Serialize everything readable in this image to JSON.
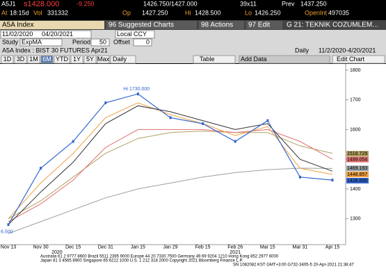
{
  "header": {
    "symbol": "A5J1",
    "last": "s1428.000",
    "change": "-9.250",
    "bidask": "1426.750/1427.000",
    "size": "39x11",
    "prev_label": "Prev",
    "prev": "1437.250",
    "at": "At",
    "time": "18:15d",
    "vol_label": "Vol",
    "vol": "331332",
    "op_label": "Op",
    "op": "1427.250",
    "hi_label": "Hi",
    "hi": "1428.500",
    "lo_label": "Lo",
    "lo": "1426.250",
    "oi_label": "OpenInt",
    "oi": "497035"
  },
  "toolbar": {
    "ticker": "A5A Index",
    "buttons": [
      "96 Suggested Charts",
      "98 Actions",
      "97 Edit",
      "G 21: TEKNIK COZUMLEM..."
    ]
  },
  "range": {
    "start": "11/02/2020",
    "end": "04/20/2021",
    "ccy": "Local CCY"
  },
  "study": {
    "label": "Study",
    "name": "ExpMA",
    "period_label": "Period",
    "period": "50",
    "offset_label": "Offset",
    "offset": "0"
  },
  "title": {
    "text": "A5A Index : BIST 30 FUTURES  Apr21",
    "freq": "Daily",
    "span": "11/2/2020-4/20/2021"
  },
  "controls": {
    "periods": [
      "1D",
      "3D",
      "1M",
      "6M",
      "YTD",
      "1Y",
      "5Y",
      "Max"
    ],
    "daily": "Daily",
    "table": "Table",
    "add_data": "Add Data",
    "edit_chart": "Edit Chart"
  },
  "chart": {
    "type": "line",
    "categories": [
      "Nov 13",
      "Nov 30",
      "Dec 15",
      "Dec 31",
      "Jan 15",
      "Jan 29",
      "Feb 15",
      "Feb 26",
      "Mar 15",
      "Mar 31",
      "Apr 15"
    ],
    "year_labels": [
      "2020",
      "2021"
    ],
    "ylim": [
      1215,
      1815
    ],
    "yticks": [
      1300,
      1400,
      1500,
      1600,
      1700,
      1800
    ],
    "annotation": "Hi 1730.000",
    "start_label": "6.500",
    "series": [
      {
        "color": "#9aa0a0",
        "values": [
          1250,
          1290,
          1330,
          1370,
          1400,
          1420,
          1440,
          1455,
          1465,
          1470,
          1469
        ],
        "end_label": "1469.193"
      },
      {
        "color": "#b0a060",
        "values": [
          1300,
          1360,
          1440,
          1520,
          1570,
          1590,
          1595,
          1590,
          1590,
          1545,
          1520
        ],
        "end_label": "1518.729"
      },
      {
        "color": "#e07070",
        "values": [
          1290,
          1350,
          1430,
          1540,
          1600,
          1600,
          1600,
          1590,
          1600,
          1560,
          1500
        ],
        "end_label": "1499.054"
      },
      {
        "color": "#f0a040",
        "values": [
          1300,
          1420,
          1520,
          1640,
          1690,
          1650,
          1620,
          1580,
          1610,
          1470,
          1449
        ],
        "end_label": "1448.857"
      },
      {
        "color": "#303030",
        "values": [
          1280,
          1390,
          1490,
          1620,
          1680,
          1660,
          1630,
          1600,
          1620,
          1500,
          1460
        ]
      },
      {
        "color": "#3366cc",
        "values": [
          1280,
          1470,
          1560,
          1690,
          1720,
          1640,
          1620,
          1560,
          1630,
          1440,
          1430
        ],
        "end_label": "1428.000"
      }
    ]
  },
  "footer": [
    "Australia 61 2 9777 8600  Brazil 5511 2395 9000  Europe 44 20 7330 7500  Germany 49 69 9204 1210  Hong Kong 852 2977 6000",
    "Japan 81 3 4565 8900        Singapore 65 6212 1000        U.S. 1 212 318 2000          Copyright 2021 Bloomberg Finance L.P.",
    "SN 1082082 KST  GMT+3:00 G732-3405-5 20-Apr-2021 21:38:47"
  ]
}
